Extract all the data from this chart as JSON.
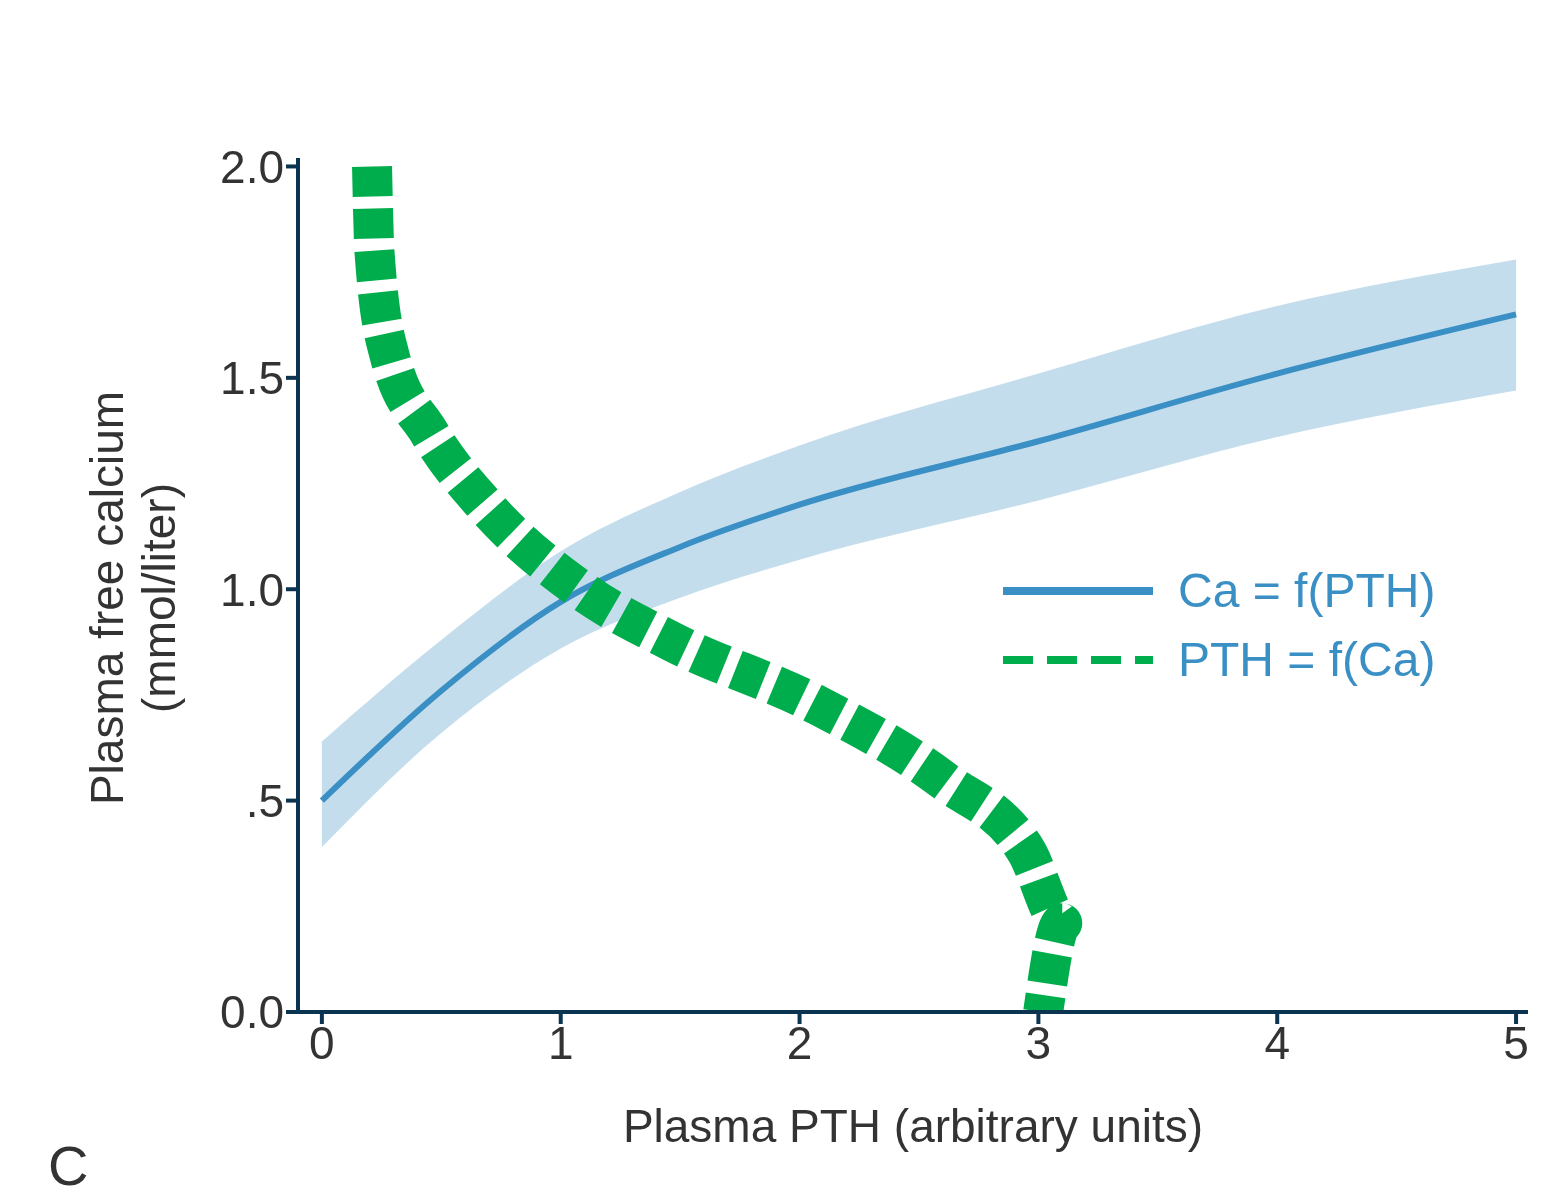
{
  "chart_data": {
    "type": "line",
    "xlabel": "Plasma PTH (arbitrary units)",
    "ylabel": "Plasma free calcium\n(mmol/liter)",
    "annotations": [
      "C"
    ],
    "xlim": [
      -0.1,
      5.05
    ],
    "xticks": [
      0,
      1,
      2,
      3,
      4,
      5
    ],
    "ylim": [
      0,
      2.02
    ],
    "yticks": [
      {
        "value": 0,
        "label": "0.0"
      },
      {
        "value": 0.5,
        "label": ".5"
      },
      {
        "value": 1,
        "label": "1.0"
      },
      {
        "value": 1.5,
        "label": "1.5"
      },
      {
        "value": 2,
        "label": "2.0"
      }
    ],
    "grid": false,
    "legend": "right",
    "marker": "none",
    "series": [
      {
        "name": "Ca = f(PTH)",
        "color": "#3a8fc4",
        "line_style": "solid",
        "x": [
          0,
          0.5,
          1,
          1.5,
          2,
          3,
          4,
          5
        ],
        "values": [
          0.5,
          0.76,
          0.97,
          1.1,
          1.2,
          1.35,
          1.51,
          1.65
        ],
        "lower": [
          0.39,
          0.66,
          0.86,
          0.98,
          1.07,
          1.21,
          1.36,
          1.47
        ],
        "upper": [
          0.64,
          0.88,
          1.09,
          1.23,
          1.34,
          1.51,
          1.67,
          1.78
        ]
      },
      {
        "name": "PTH = f(Ca)",
        "color": "#00ad4c",
        "line_style": "dashed",
        "x": [
          0.21,
          0.22,
          0.28,
          0.45,
          0.68,
          1.08,
          1.47,
          2.06,
          2.61,
          2.95,
          3.1,
          3.02
        ],
        "values": [
          2.0,
          1.8,
          1.56,
          1.37,
          1.2,
          1.0,
          0.875,
          0.73,
          0.545,
          0.38,
          0.21,
          0
        ]
      }
    ]
  }
}
